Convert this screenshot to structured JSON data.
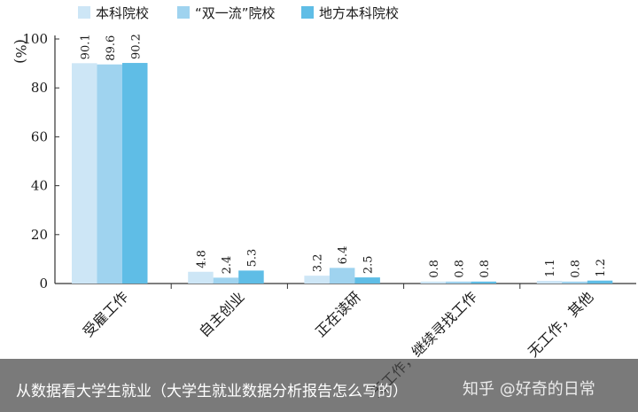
{
  "chart_data": {
    "type": "bar",
    "ylabel": "%",
    "ylim": [
      0,
      100
    ],
    "yticks": [
      "0",
      "20",
      "40",
      "60",
      "80",
      "100"
    ],
    "categories": [
      "受雇工作",
      "自主创业",
      "正在读研",
      "无工作，继续寻找工作",
      "无工作，其他"
    ],
    "series": [
      {
        "name": "本科院校",
        "color": "#cde6f6",
        "values": [
          90.1,
          4.8,
          3.2,
          0.8,
          1.1
        ],
        "labels": [
          "90.1",
          "4.8",
          "3.2",
          "0.8",
          "1.1"
        ]
      },
      {
        "name": "“双一流”院校",
        "color": "#9fd3ef",
        "values": [
          89.6,
          2.4,
          6.4,
          0.8,
          0.8
        ],
        "labels": [
          "89.6",
          "2.4",
          "6.4",
          "0.8",
          "0.8"
        ]
      },
      {
        "name": "地方本科院校",
        "color": "#5fbde6",
        "values": [
          90.2,
          5.3,
          2.5,
          0.8,
          1.2
        ],
        "labels": [
          "90.2",
          "5.3",
          "2.5",
          "0.8",
          "1.2"
        ]
      }
    ],
    "legend_position": "top",
    "grid": false
  },
  "caption": {
    "text": "从数据看大学生就业（大学生就业数据分析报告怎么写的）",
    "watermark": "知乎 @好奇的日常"
  }
}
